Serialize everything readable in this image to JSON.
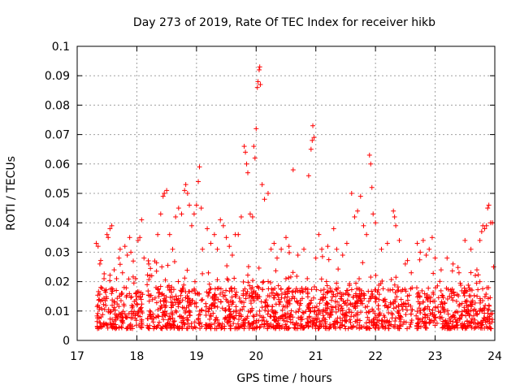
{
  "chart_data": {
    "type": "scatter",
    "title": "Day 273 of 2019, Rate Of TEC Index for receiver hikb",
    "xlabel": "GPS time / hours",
    "ylabel": "ROTI / TECUs",
    "xlim": [
      17,
      24
    ],
    "ylim": [
      0,
      0.1
    ],
    "xticks": [
      "17",
      "18",
      "19",
      "20",
      "21",
      "22",
      "23",
      "24"
    ],
    "yticks": [
      "0",
      "0.01",
      "0.02",
      "0.03",
      "0.04",
      "0.05",
      "0.06",
      "0.07",
      "0.08",
      "0.09",
      "0.1"
    ],
    "grid": true,
    "marker": "+",
    "color": "#ff0000",
    "series": [
      {
        "name": "ROTI",
        "points": [
          [
            17.32,
            0.033
          ],
          [
            17.35,
            0.032
          ],
          [
            17.38,
            0.026
          ],
          [
            17.4,
            0.018
          ],
          [
            17.45,
            0.021
          ],
          [
            17.5,
            0.036
          ],
          [
            17.52,
            0.035
          ],
          [
            17.55,
            0.038
          ],
          [
            17.58,
            0.039
          ],
          [
            17.62,
            0.024
          ],
          [
            17.66,
            0.021
          ],
          [
            17.7,
            0.028
          ],
          [
            17.72,
            0.031
          ],
          [
            17.76,
            0.023
          ],
          [
            17.8,
            0.032
          ],
          [
            17.84,
            0.029
          ],
          [
            17.88,
            0.035
          ],
          [
            17.9,
            0.03
          ],
          [
            17.94,
            0.027
          ],
          [
            17.98,
            0.021
          ],
          [
            18.02,
            0.034
          ],
          [
            18.05,
            0.035
          ],
          [
            18.08,
            0.041
          ],
          [
            18.12,
            0.028
          ],
          [
            18.2,
            0.026
          ],
          [
            18.25,
            0.022
          ],
          [
            18.3,
            0.027
          ],
          [
            18.35,
            0.036
          ],
          [
            18.4,
            0.043
          ],
          [
            18.44,
            0.049
          ],
          [
            18.46,
            0.05
          ],
          [
            18.5,
            0.051
          ],
          [
            18.55,
            0.036
          ],
          [
            18.6,
            0.031
          ],
          [
            18.65,
            0.042
          ],
          [
            18.7,
            0.045
          ],
          [
            18.75,
            0.043
          ],
          [
            18.8,
            0.051
          ],
          [
            18.82,
            0.053
          ],
          [
            18.85,
            0.05
          ],
          [
            18.88,
            0.046
          ],
          [
            18.92,
            0.039
          ],
          [
            18.96,
            0.043
          ],
          [
            19.0,
            0.046
          ],
          [
            19.03,
            0.054
          ],
          [
            19.05,
            0.059
          ],
          [
            19.08,
            0.045
          ],
          [
            19.1,
            0.031
          ],
          [
            19.18,
            0.038
          ],
          [
            19.24,
            0.033
          ],
          [
            19.3,
            0.036
          ],
          [
            19.35,
            0.031
          ],
          [
            19.4,
            0.041
          ],
          [
            19.45,
            0.039
          ],
          [
            19.5,
            0.035
          ],
          [
            19.55,
            0.032
          ],
          [
            19.6,
            0.029
          ],
          [
            19.65,
            0.036
          ],
          [
            19.7,
            0.036
          ],
          [
            19.75,
            0.042
          ],
          [
            19.8,
            0.066
          ],
          [
            19.82,
            0.064
          ],
          [
            19.84,
            0.06
          ],
          [
            19.86,
            0.057
          ],
          [
            19.9,
            0.043
          ],
          [
            19.94,
            0.042
          ],
          [
            19.96,
            0.066
          ],
          [
            19.98,
            0.062
          ],
          [
            20.0,
            0.072
          ],
          [
            20.02,
            0.086
          ],
          [
            20.03,
            0.088
          ],
          [
            20.05,
            0.092
          ],
          [
            20.06,
            0.093
          ],
          [
            20.07,
            0.087
          ],
          [
            20.1,
            0.053
          ],
          [
            20.14,
            0.048
          ],
          [
            20.2,
            0.05
          ],
          [
            20.25,
            0.031
          ],
          [
            20.3,
            0.033
          ],
          [
            20.35,
            0.028
          ],
          [
            20.42,
            0.031
          ],
          [
            20.5,
            0.035
          ],
          [
            20.55,
            0.032
          ],
          [
            20.62,
            0.058
          ],
          [
            20.7,
            0.029
          ],
          [
            20.8,
            0.031
          ],
          [
            20.88,
            0.056
          ],
          [
            20.92,
            0.065
          ],
          [
            20.94,
            0.068
          ],
          [
            20.95,
            0.073
          ],
          [
            20.97,
            0.069
          ],
          [
            21.0,
            0.028
          ],
          [
            21.05,
            0.036
          ],
          [
            21.1,
            0.031
          ],
          [
            21.2,
            0.032
          ],
          [
            21.3,
            0.038
          ],
          [
            21.35,
            0.031
          ],
          [
            21.45,
            0.029
          ],
          [
            21.52,
            0.033
          ],
          [
            21.6,
            0.05
          ],
          [
            21.65,
            0.042
          ],
          [
            21.7,
            0.044
          ],
          [
            21.75,
            0.049
          ],
          [
            21.8,
            0.039
          ],
          [
            21.85,
            0.036
          ],
          [
            21.9,
            0.063
          ],
          [
            21.92,
            0.06
          ],
          [
            21.94,
            0.052
          ],
          [
            21.96,
            0.043
          ],
          [
            22.0,
            0.04
          ],
          [
            22.1,
            0.031
          ],
          [
            22.2,
            0.033
          ],
          [
            22.3,
            0.044
          ],
          [
            22.32,
            0.042
          ],
          [
            22.34,
            0.039
          ],
          [
            22.4,
            0.034
          ],
          [
            22.5,
            0.026
          ],
          [
            22.6,
            0.023
          ],
          [
            22.7,
            0.033
          ],
          [
            22.75,
            0.03
          ],
          [
            22.8,
            0.034
          ],
          [
            22.85,
            0.029
          ],
          [
            22.9,
            0.031
          ],
          [
            22.95,
            0.035
          ],
          [
            23.0,
            0.028
          ],
          [
            23.1,
            0.024
          ],
          [
            23.2,
            0.028
          ],
          [
            23.3,
            0.026
          ],
          [
            23.4,
            0.023
          ],
          [
            23.5,
            0.034
          ],
          [
            23.6,
            0.031
          ],
          [
            23.7,
            0.024
          ],
          [
            23.75,
            0.034
          ],
          [
            23.78,
            0.037
          ],
          [
            23.8,
            0.039
          ],
          [
            23.83,
            0.038
          ],
          [
            23.86,
            0.039
          ],
          [
            23.88,
            0.045
          ],
          [
            23.9,
            0.046
          ],
          [
            23.93,
            0.04
          ],
          [
            23.96,
            0.04
          ],
          [
            23.98,
            0.025
          ]
        ]
      }
    ]
  }
}
